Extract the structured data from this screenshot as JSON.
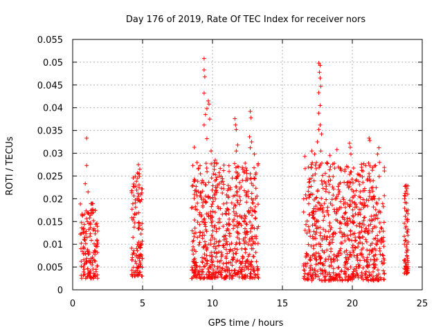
{
  "chart_data": {
    "type": "scatter",
    "title": "Day 176 of 2019, Rate Of TEC Index for receiver nors",
    "xlabel": "GPS time / hours",
    "ylabel": "ROTI / TECUs",
    "xlim": [
      0,
      25
    ],
    "ylim": [
      0,
      0.055
    ],
    "x_ticks": [
      0,
      5,
      10,
      15,
      20,
      25
    ],
    "x_tick_labels": [
      "0",
      "5",
      "10",
      "15",
      "20",
      "25"
    ],
    "y_ticks": [
      0,
      0.005,
      0.01,
      0.015,
      0.02,
      0.025,
      0.03,
      0.035,
      0.04,
      0.045,
      0.05,
      0.055
    ],
    "y_tick_labels": [
      "0",
      "0.005",
      "0.01",
      "0.015",
      "0.02",
      "0.025",
      "0.03",
      "0.035",
      "0.04",
      "0.045",
      "0.05",
      "0.055"
    ],
    "grid": true,
    "marker": "+",
    "marker_color": "#ff0000",
    "series": [
      {
        "name": "ROTI",
        "clusters": [
          {
            "x_range": [
              0.5,
              1.8
            ],
            "y_range": [
              0.0025,
              0.019
            ],
            "count": 150
          },
          {
            "x_range": [
              4.2,
              5.0
            ],
            "y_range": [
              0.003,
              0.026
            ],
            "count": 120
          },
          {
            "x_range": [
              8.5,
              13.3
            ],
            "y_range": [
              0.0025,
              0.028
            ],
            "count": 650
          },
          {
            "x_range": [
              16.5,
              22.3
            ],
            "y_range": [
              0.002,
              0.028
            ],
            "count": 750
          },
          {
            "x_range": [
              23.7,
              24.0
            ],
            "y_range": [
              0.0035,
              0.023
            ],
            "count": 70
          }
        ],
        "points": [
          {
            "x": 1.0,
            "y": 0.0333
          },
          {
            "x": 1.0,
            "y": 0.0273
          },
          {
            "x": 0.9,
            "y": 0.0233
          },
          {
            "x": 1.1,
            "y": 0.0215
          },
          {
            "x": 4.7,
            "y": 0.0275
          },
          {
            "x": 4.7,
            "y": 0.0255
          },
          {
            "x": 4.8,
            "y": 0.0265
          },
          {
            "x": 8.7,
            "y": 0.0313
          },
          {
            "x": 9.0,
            "y": 0.0267
          },
          {
            "x": 9.4,
            "y": 0.0508
          },
          {
            "x": 9.4,
            "y": 0.0483
          },
          {
            "x": 9.45,
            "y": 0.0468
          },
          {
            "x": 9.4,
            "y": 0.0432
          },
          {
            "x": 9.7,
            "y": 0.0415
          },
          {
            "x": 9.75,
            "y": 0.0408
          },
          {
            "x": 9.6,
            "y": 0.0398
          },
          {
            "x": 9.5,
            "y": 0.0385
          },
          {
            "x": 9.8,
            "y": 0.0375
          },
          {
            "x": 9.4,
            "y": 0.0362
          },
          {
            "x": 9.6,
            "y": 0.0332
          },
          {
            "x": 9.9,
            "y": 0.0305
          },
          {
            "x": 10.2,
            "y": 0.0285
          },
          {
            "x": 11.6,
            "y": 0.0376
          },
          {
            "x": 11.65,
            "y": 0.0362
          },
          {
            "x": 11.7,
            "y": 0.0352
          },
          {
            "x": 11.8,
            "y": 0.0318
          },
          {
            "x": 11.7,
            "y": 0.0305
          },
          {
            "x": 12.7,
            "y": 0.0392
          },
          {
            "x": 12.75,
            "y": 0.0378
          },
          {
            "x": 12.65,
            "y": 0.0336
          },
          {
            "x": 12.8,
            "y": 0.0325
          },
          {
            "x": 12.7,
            "y": 0.0312
          },
          {
            "x": 13.0,
            "y": 0.0298
          },
          {
            "x": 16.6,
            "y": 0.0293
          },
          {
            "x": 17.1,
            "y": 0.0305
          },
          {
            "x": 17.3,
            "y": 0.0298
          },
          {
            "x": 17.5,
            "y": 0.0325
          },
          {
            "x": 17.6,
            "y": 0.0498
          },
          {
            "x": 17.7,
            "y": 0.0493
          },
          {
            "x": 17.65,
            "y": 0.0478
          },
          {
            "x": 17.7,
            "y": 0.0465
          },
          {
            "x": 17.75,
            "y": 0.0447
          },
          {
            "x": 17.6,
            "y": 0.0433
          },
          {
            "x": 17.7,
            "y": 0.0405
          },
          {
            "x": 17.6,
            "y": 0.0388
          },
          {
            "x": 17.7,
            "y": 0.0362
          },
          {
            "x": 17.6,
            "y": 0.0352
          },
          {
            "x": 17.8,
            "y": 0.0342
          },
          {
            "x": 17.75,
            "y": 0.0305
          },
          {
            "x": 18.4,
            "y": 0.0295
          },
          {
            "x": 18.9,
            "y": 0.0308
          },
          {
            "x": 19.8,
            "y": 0.0322
          },
          {
            "x": 19.85,
            "y": 0.0313
          },
          {
            "x": 19.9,
            "y": 0.0298
          },
          {
            "x": 21.2,
            "y": 0.0333
          },
          {
            "x": 21.25,
            "y": 0.0328
          },
          {
            "x": 21.9,
            "y": 0.0312
          },
          {
            "x": 21.8,
            "y": 0.0298
          },
          {
            "x": 23.8,
            "y": 0.0228
          },
          {
            "x": 23.9,
            "y": 0.0222
          }
        ]
      }
    ]
  }
}
